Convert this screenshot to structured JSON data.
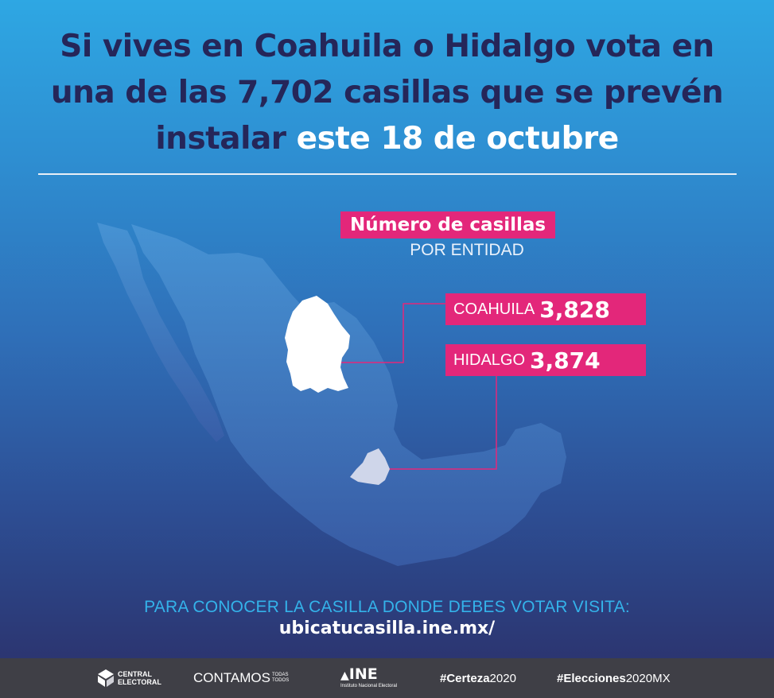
{
  "headline": {
    "line1": "Si vives en Coahuila o Hidalgo vota en",
    "line2": "una de las 7,702 casillas que se prevén",
    "line3_start": "instalar",
    "line3_highlight": "este 18 de octubre"
  },
  "legend": {
    "title": "Número de casillas",
    "subtitle": "POR ENTIDAD"
  },
  "states": [
    {
      "name": "COAHUILA",
      "value": "3,828"
    },
    {
      "name": "HIDALGO",
      "value": "3,874"
    }
  ],
  "cta": {
    "text": "PARA CONOCER LA CASILLA DONDE DEBES VOTAR VISITA:",
    "url": "ubicatucasilla.ine.mx/"
  },
  "footer": {
    "central_line1": "CENTRAL",
    "central_line2": "ELECTORAL",
    "contamos": "CONTAMOS",
    "contamos_small1": "TODAS",
    "contamos_small2": "TODOS",
    "ine_logo": "INE",
    "ine_sub": "Instituto Nacional Electoral",
    "tag1_bold": "#Certeza",
    "tag1_rest": "2020",
    "tag2_bold": "#Elecciones",
    "tag2_rest": "2020MX"
  },
  "colors": {
    "accent_pink": "#e3277a",
    "headline_navy": "#252659",
    "cta_cyan": "#34b3ea",
    "footer_gray": "#3f3f46"
  },
  "icons": [
    "central-electoral-logo-icon",
    "ine-logo-icon"
  ]
}
